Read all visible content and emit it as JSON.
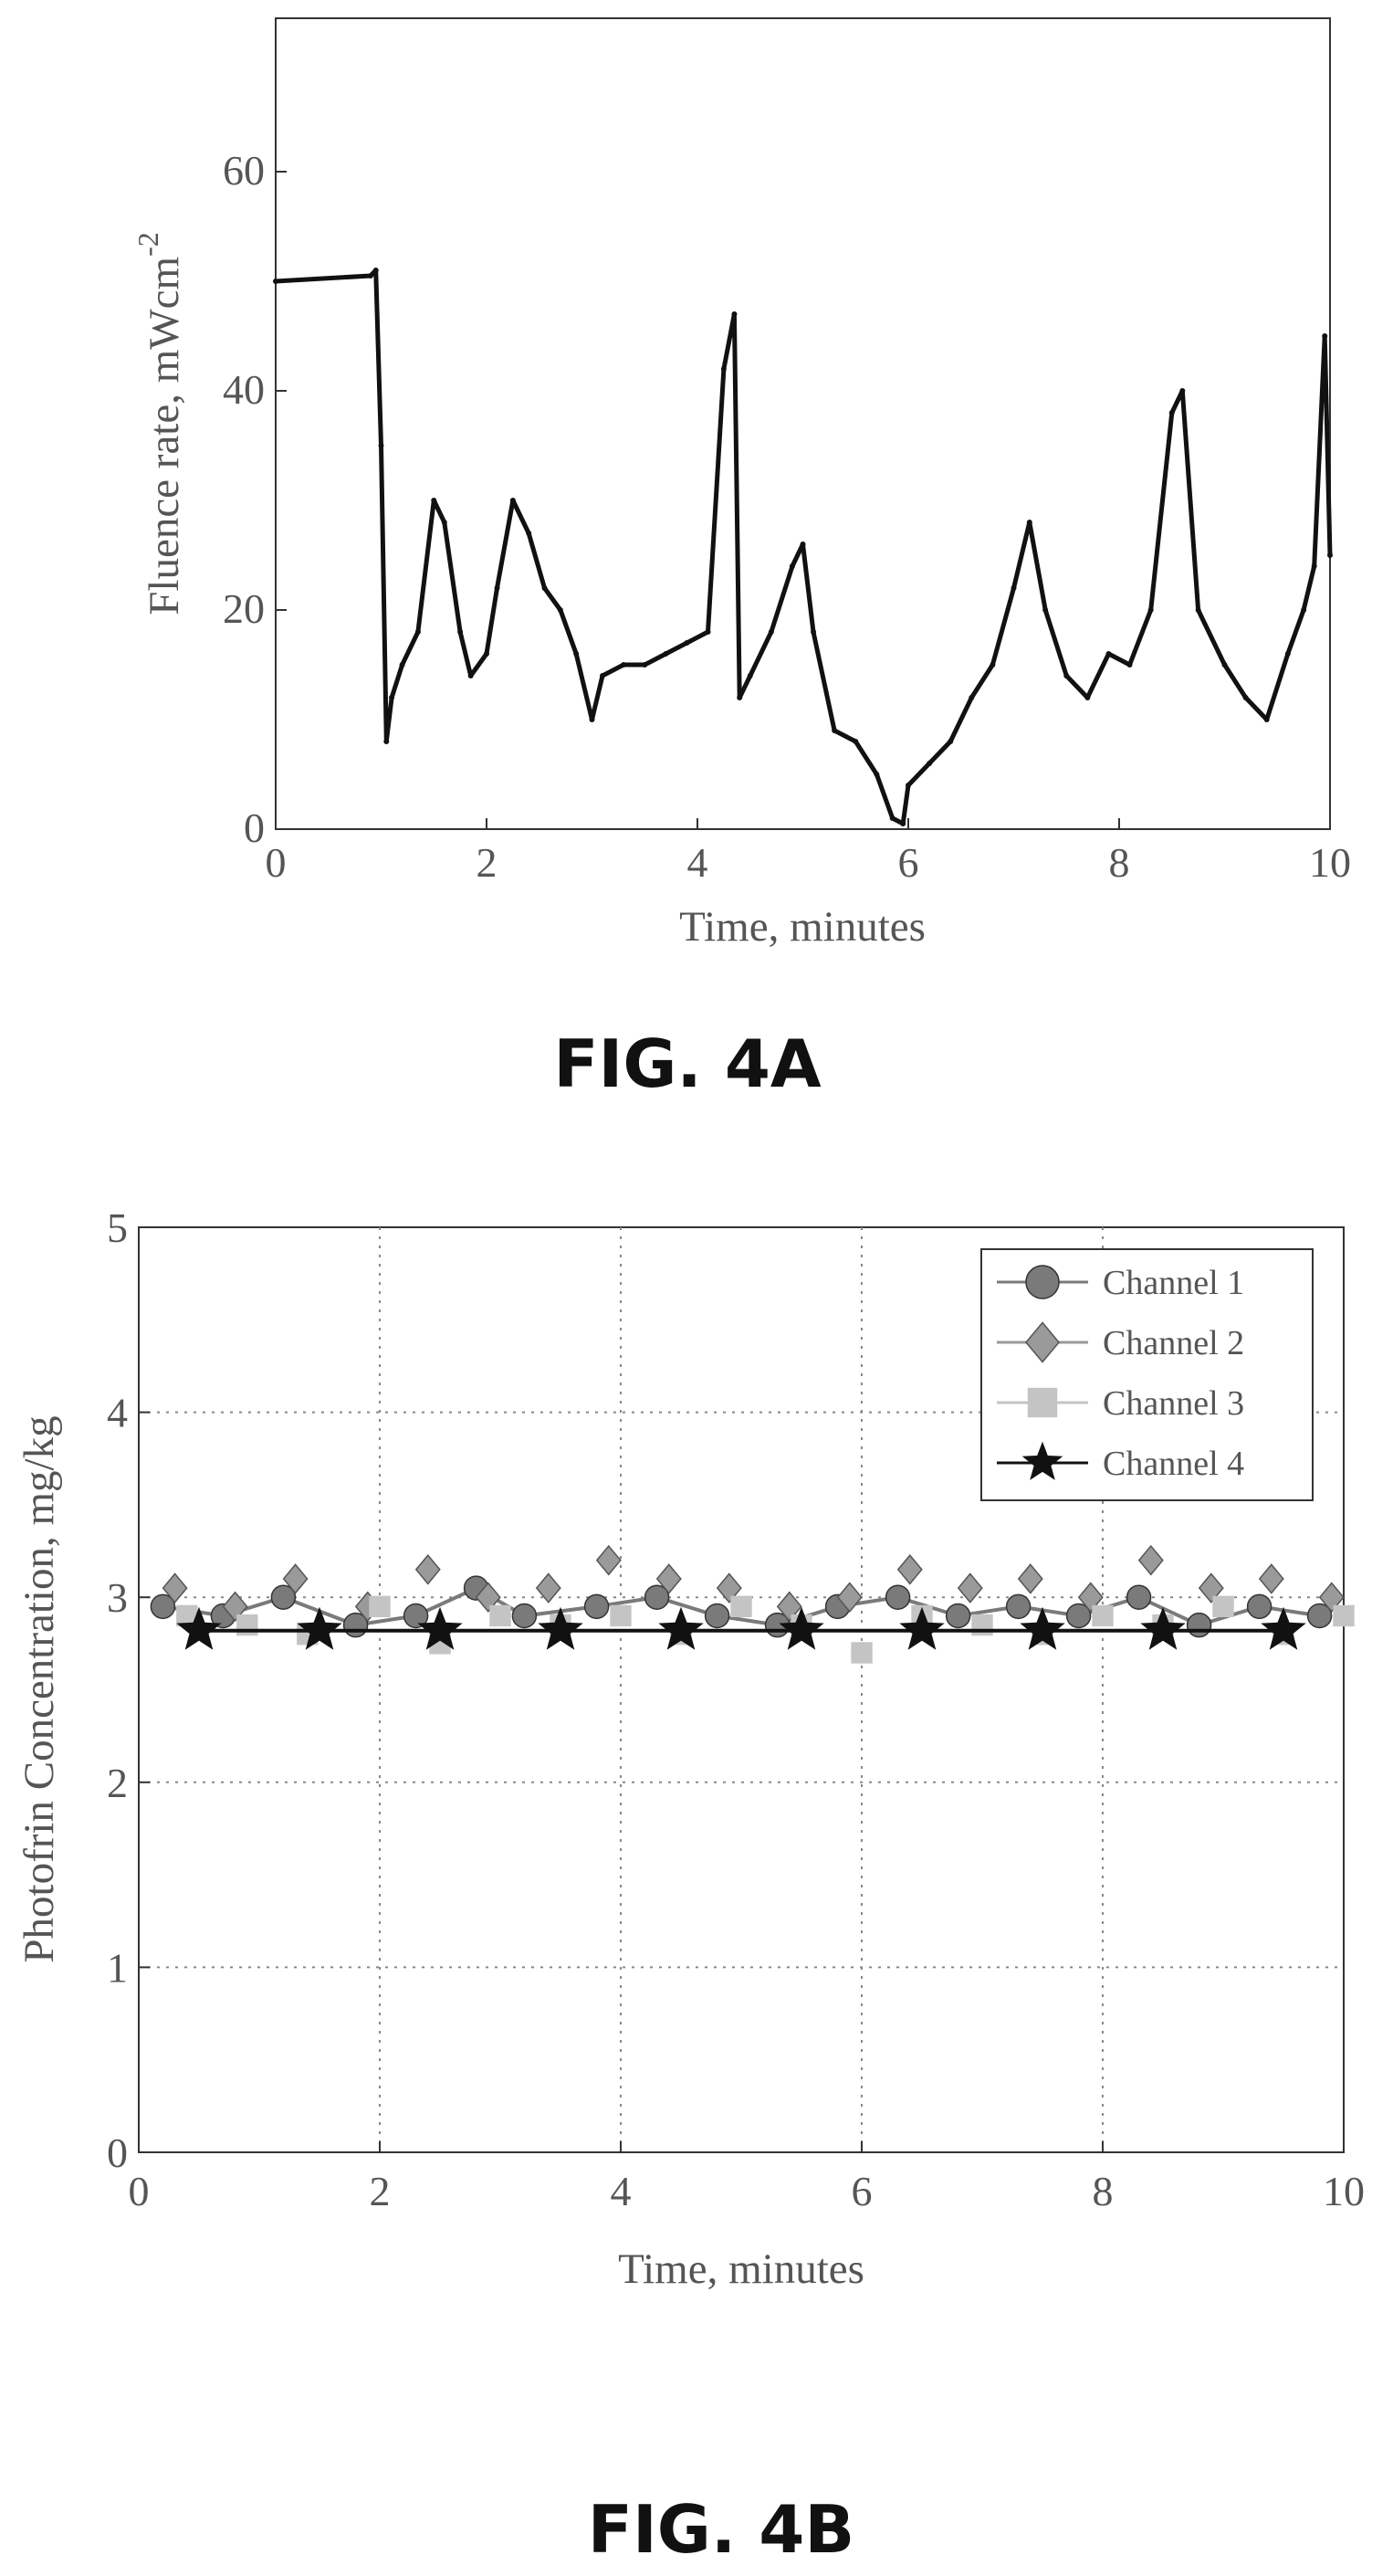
{
  "figures": [
    {
      "label": "FIG. 4A"
    },
    {
      "label": "FIG. 4B"
    }
  ],
  "chart_data": [
    {
      "type": "line",
      "xlabel": "Time, minutes",
      "ylabel": "Fluence rate, mWcm",
      "ylabel_sup": "-2",
      "xlim": [
        0,
        10
      ],
      "ylim": [
        0,
        74
      ],
      "xticks": [
        0,
        2,
        4,
        6,
        8,
        10
      ],
      "yticks": [
        0,
        20,
        40,
        60
      ],
      "grid": false,
      "series": [
        {
          "x": [
            0,
            0.9,
            0.95,
            1.0,
            1.05,
            1.1,
            1.2,
            1.35,
            1.5,
            1.6,
            1.75,
            1.85,
            2.0,
            2.1,
            2.25,
            2.4,
            2.55,
            2.7,
            2.85,
            3.0,
            3.1,
            3.3,
            3.5,
            3.7,
            3.9,
            4.1,
            4.25,
            4.35,
            4.4,
            4.5,
            4.7,
            4.9,
            5.0,
            5.1,
            5.3,
            5.5,
            5.7,
            5.85,
            5.95,
            6.0,
            6.2,
            6.4,
            6.6,
            6.8,
            7.0,
            7.15,
            7.3,
            7.5,
            7.7,
            7.9,
            8.1,
            8.3,
            8.5,
            8.6,
            8.75,
            9.0,
            9.2,
            9.4,
            9.6,
            9.75,
            9.85,
            9.95,
            10.0
          ],
          "y": [
            50,
            50.5,
            51,
            35,
            8,
            12,
            15,
            18,
            30,
            28,
            18,
            14,
            16,
            22,
            30,
            27,
            22,
            20,
            16,
            10,
            14,
            15,
            15,
            16,
            17,
            18,
            42,
            47,
            12,
            14,
            18,
            24,
            26,
            18,
            9,
            8,
            5,
            1,
            0.5,
            4,
            6,
            8,
            12,
            15,
            22,
            28,
            20,
            14,
            12,
            16,
            15,
            20,
            38,
            40,
            20,
            15,
            12,
            10,
            16,
            20,
            24,
            45,
            25
          ]
        }
      ]
    },
    {
      "type": "scatter",
      "xlabel": "Time, minutes",
      "ylabel": "Photofrin Concentration, mg/kg",
      "xlim": [
        0,
        10
      ],
      "ylim": [
        0,
        5
      ],
      "xticks": [
        0,
        2,
        4,
        6,
        8,
        10
      ],
      "yticks": [
        0,
        1,
        2,
        3,
        4,
        5
      ],
      "grid": true,
      "legend_position": "top-right",
      "series": [
        {
          "name": "Channel 1",
          "marker": "circle",
          "color": "#7a7a7a",
          "x": [
            0.2,
            0.7,
            1.2,
            1.8,
            2.3,
            2.8,
            3.2,
            3.8,
            4.3,
            4.8,
            5.3,
            5.8,
            6.3,
            6.8,
            7.3,
            7.8,
            8.3,
            8.8,
            9.3,
            9.8
          ],
          "y": [
            2.95,
            2.9,
            3.0,
            2.85,
            2.9,
            3.05,
            2.9,
            2.95,
            3.0,
            2.9,
            2.85,
            2.95,
            3.0,
            2.9,
            2.95,
            2.9,
            3.0,
            2.85,
            2.95,
            2.9
          ]
        },
        {
          "name": "Channel 2",
          "marker": "diamond",
          "color": "#9a9a9a",
          "x": [
            0.3,
            0.8,
            1.3,
            1.9,
            2.4,
            2.9,
            3.4,
            3.9,
            4.4,
            4.9,
            5.4,
            5.9,
            6.4,
            6.9,
            7.4,
            7.9,
            8.4,
            8.9,
            9.4,
            9.9
          ],
          "y": [
            3.05,
            2.95,
            3.1,
            2.95,
            3.15,
            3.0,
            3.05,
            3.2,
            3.1,
            3.05,
            2.95,
            3.0,
            3.15,
            3.05,
            3.1,
            3.0,
            3.2,
            3.05,
            3.1,
            3.0
          ]
        },
        {
          "name": "Channel 3",
          "marker": "square",
          "color": "#c4c4c4",
          "x": [
            0.4,
            0.9,
            1.4,
            2.0,
            2.5,
            3.0,
            3.5,
            4.0,
            4.5,
            5.0,
            5.5,
            6.0,
            6.5,
            7.0,
            7.5,
            8.0,
            8.5,
            9.0,
            9.5,
            10.0
          ],
          "y": [
            2.9,
            2.85,
            2.8,
            2.95,
            2.75,
            2.9,
            2.85,
            2.9,
            2.8,
            2.95,
            2.85,
            2.7,
            2.9,
            2.85,
            2.8,
            2.9,
            2.85,
            2.95,
            2.8,
            2.9
          ]
        },
        {
          "name": "Channel 4",
          "marker": "star",
          "color": "#111111",
          "x": [
            0.5,
            1.5,
            2.5,
            3.5,
            4.5,
            5.5,
            6.5,
            7.5,
            8.5,
            9.5
          ],
          "y": [
            2.82,
            2.82,
            2.82,
            2.82,
            2.82,
            2.82,
            2.82,
            2.82,
            2.82,
            2.82
          ]
        }
      ]
    }
  ]
}
